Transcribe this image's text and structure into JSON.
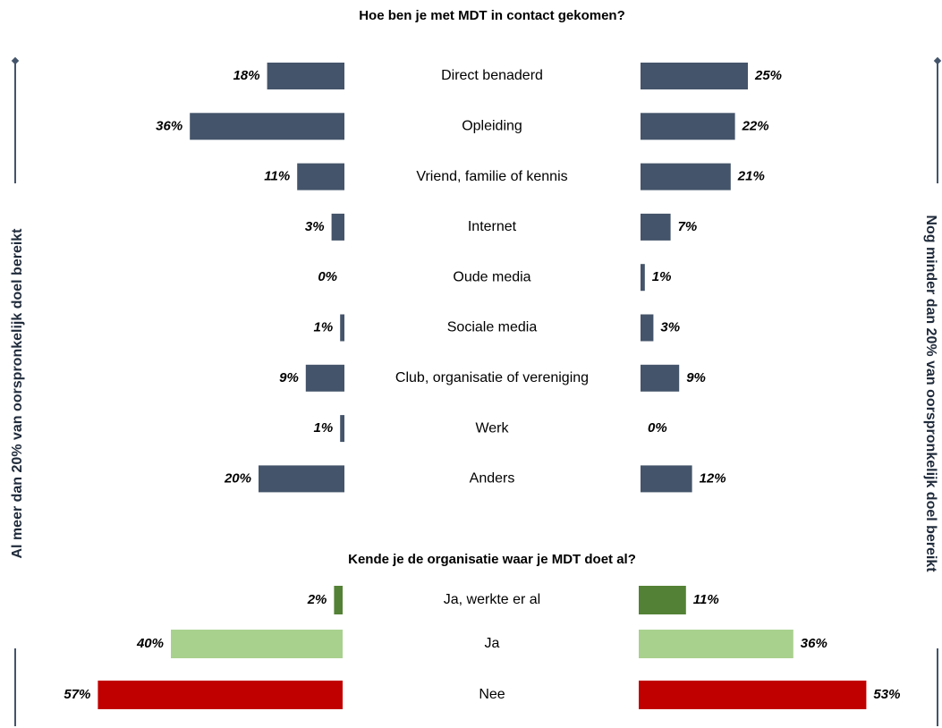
{
  "chart_data": [
    {
      "type": "butterfly",
      "title": "Hoe ben je met MDT in contact gekomen?",
      "categories": [
        "Direct benaderd",
        "Opleiding",
        "Vriend, familie of kennis",
        "Internet",
        "Oude media",
        "Sociale media",
        "Club, organisatie of vereniging",
        "Werk",
        "Anders"
      ],
      "series": [
        {
          "name": "Al meer dan 20% van oorspronkelijk doel bereikt",
          "color": "#44546a",
          "values": [
            18,
            36,
            11,
            3,
            0,
            1,
            9,
            1,
            20
          ],
          "value_labels": [
            "18%",
            "36%",
            "11%",
            "3%",
            "0%",
            "1%",
            "9%",
            "1%",
            "20%"
          ]
        },
        {
          "name": "Nog minder dan 20% van oorspronkelijk doel bereikt",
          "color": "#44546a",
          "values": [
            25,
            22,
            21,
            7,
            1,
            3,
            9,
            0,
            12
          ],
          "value_labels": [
            "25%",
            "22%",
            "21%",
            "7%",
            "1%",
            "3%",
            "9%",
            "0%",
            "12%"
          ]
        }
      ]
    },
    {
      "type": "butterfly",
      "title": "Kende je de organisatie waar je MDT doet al?",
      "categories": [
        "Ja, werkte er al",
        "Ja",
        "Nee"
      ],
      "series": [
        {
          "colors": [
            "#538135",
            "#a9d18e",
            "#c00000"
          ],
          "values": [
            2,
            40,
            57
          ],
          "value_labels": [
            "2%",
            "40%",
            "57%"
          ]
        },
        {
          "colors": [
            "#538135",
            "#a9d18e",
            "#c00000"
          ],
          "values": [
            11,
            36,
            53
          ],
          "value_labels": [
            "11%",
            "36%",
            "53%"
          ]
        }
      ]
    }
  ]
}
